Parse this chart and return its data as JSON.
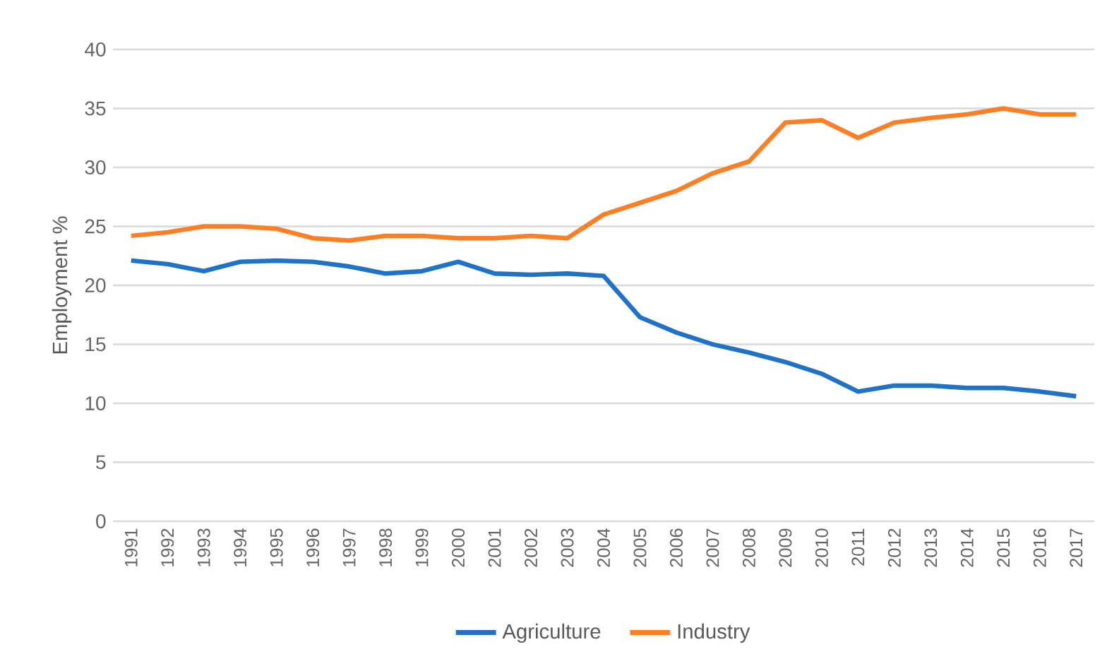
{
  "chart_data": {
    "type": "line",
    "ylabel": "Employment %",
    "categories": [
      "1991",
      "1992",
      "1993",
      "1994",
      "1995",
      "1996",
      "1997",
      "1998",
      "1999",
      "2000",
      "2001",
      "2002",
      "2003",
      "2004",
      "2005",
      "2006",
      "2007",
      "2008",
      "2009",
      "2010",
      "2011",
      "2012",
      "2013",
      "2014",
      "2015",
      "2016",
      "2017"
    ],
    "series": [
      {
        "name": "Agriculture",
        "color": "#1f72c6",
        "values": [
          22.1,
          21.8,
          21.2,
          22.0,
          22.1,
          22.0,
          21.6,
          21.0,
          21.2,
          22.0,
          21.0,
          20.9,
          21.0,
          20.8,
          17.3,
          16.0,
          15.0,
          14.3,
          13.5,
          12.5,
          11.0,
          11.5,
          11.5,
          11.3,
          11.3,
          11.0,
          10.6
        ]
      },
      {
        "name": "Industry",
        "color": "#ff7f27",
        "values": [
          24.2,
          24.5,
          25.0,
          25.0,
          24.8,
          24.0,
          23.8,
          24.2,
          24.2,
          24.0,
          24.0,
          24.2,
          24.0,
          26.0,
          27.0,
          28.0,
          29.5,
          30.5,
          33.8,
          34.0,
          32.5,
          33.8,
          34.2,
          34.5,
          35.0,
          34.5,
          34.5
        ]
      }
    ],
    "ylim": [
      0,
      40
    ],
    "yticks": [
      0,
      5,
      10,
      15,
      20,
      25,
      30,
      35,
      40
    ],
    "grid": "y",
    "legend": "bottom",
    "marker": "none",
    "line_style": "solid"
  }
}
